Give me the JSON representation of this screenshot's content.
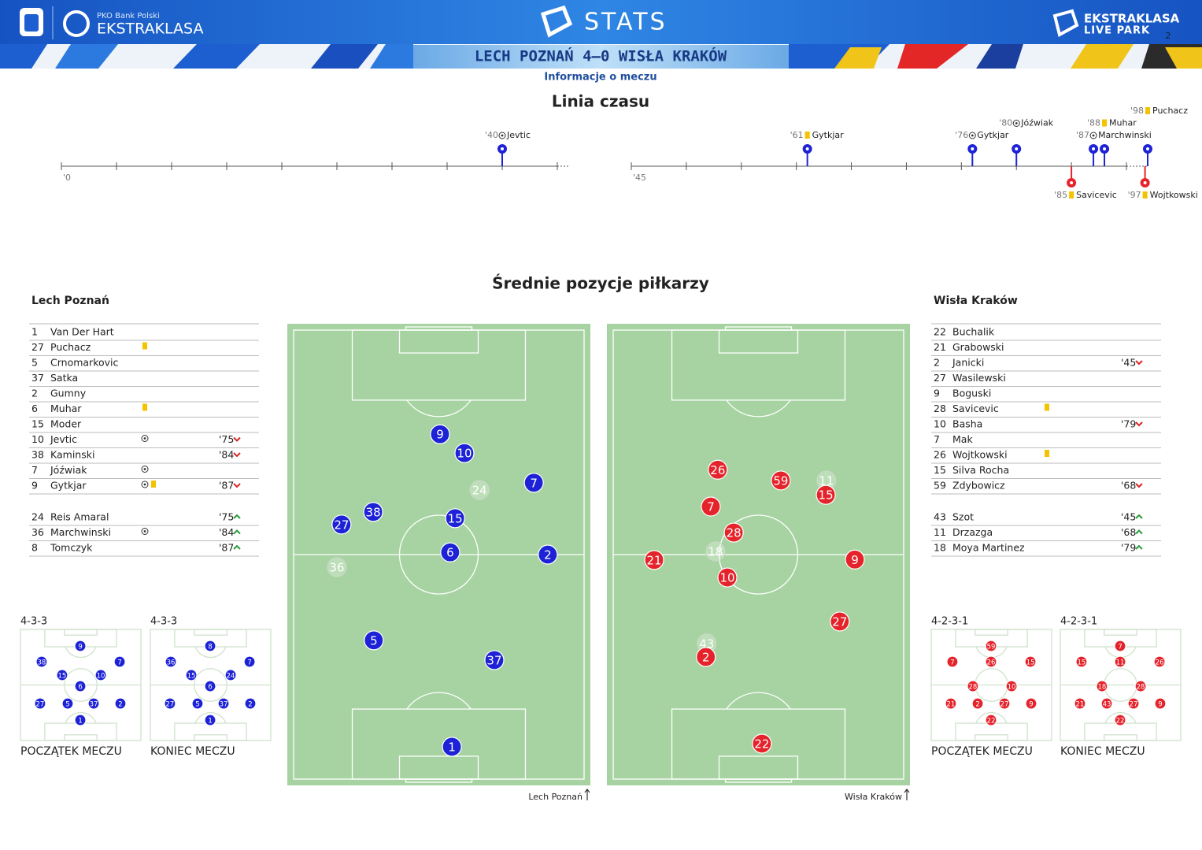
{
  "header": {
    "sponsor": "PKO Bank Polski",
    "league": "EKSTRAKLASA",
    "title": "STATS",
    "brand_top": "EKSTRAKLASA",
    "brand_bottom": "LIVE PARK",
    "page": "2",
    "match": "LECH POZNAŃ 4–0 WISŁA KRAKÓW",
    "subtitle": "Informacje o meczu"
  },
  "team_colors": {
    "home": "#1d22d6",
    "away": "#e5232b"
  },
  "timeline": {
    "title": "Linia czasu",
    "halves": [
      {
        "start_label": "'0",
        "xlim": [
          0,
          45
        ],
        "stoppage_lim": [
          45,
          48
        ],
        "xticks": [
          0,
          5,
          10,
          15,
          20,
          25,
          30,
          35,
          40,
          45
        ]
      },
      {
        "start_label": "'45",
        "xlim": [
          45,
          90
        ],
        "stoppage_lim": [
          90,
          98
        ],
        "xticks": [
          45,
          50,
          55,
          60,
          65,
          70,
          75,
          80,
          85,
          90
        ]
      }
    ],
    "events": [
      {
        "minute": 40,
        "label": "'40",
        "player": "Jevtic",
        "kind": "goal",
        "team": "home",
        "half": 0
      },
      {
        "minute": 61,
        "label": "'61",
        "player": "Gytkjar",
        "kind": "yellow",
        "team": "home",
        "half": 1
      },
      {
        "minute": 76,
        "label": "'76",
        "player": "Gytkjar",
        "kind": "goal",
        "team": "home",
        "half": 1
      },
      {
        "minute": 80,
        "label": "'80",
        "player": "Jóźwiak",
        "kind": "goal",
        "team": "home",
        "half": 1
      },
      {
        "minute": 85,
        "label": "'85",
        "player": "Savicevic",
        "kind": "yellow",
        "team": "away",
        "half": 1
      },
      {
        "minute": 87,
        "label": "'87",
        "player": "Marchwinski",
        "kind": "goal",
        "team": "home",
        "half": 1
      },
      {
        "minute": 88,
        "label": "'88",
        "player": "Muhar",
        "kind": "yellow",
        "team": "home",
        "half": 1
      },
      {
        "minute": 97,
        "label": "'97",
        "player": "Wojtkowski",
        "kind": "yellow",
        "team": "away",
        "half": 1
      },
      {
        "minute": 98,
        "label": "'98",
        "player": "Puchacz",
        "kind": "yellow",
        "team": "home",
        "half": 1
      }
    ]
  },
  "positions_title": "Średnie pozycje piłkarzy",
  "lineups": {
    "home": {
      "team": "Lech Poznań",
      "starters": [
        {
          "number": 1,
          "name": "Van Der Hart"
        },
        {
          "number": 27,
          "name": "Puchacz",
          "icons": [
            "yellow"
          ]
        },
        {
          "number": 5,
          "name": "Crnomarkovic"
        },
        {
          "number": 37,
          "name": "Satka"
        },
        {
          "number": 2,
          "name": "Gumny"
        },
        {
          "number": 6,
          "name": "Muhar",
          "icons": [
            "yellow"
          ]
        },
        {
          "number": 15,
          "name": "Moder"
        },
        {
          "number": 10,
          "name": "Jevtic",
          "icons": [
            "goal"
          ],
          "sub": {
            "label": "'75",
            "dir": "off"
          }
        },
        {
          "number": 38,
          "name": "Kaminski",
          "sub": {
            "label": "'84",
            "dir": "off"
          }
        },
        {
          "number": 7,
          "name": "Jóźwiak",
          "icons": [
            "goal"
          ]
        },
        {
          "number": 9,
          "name": "Gytkjar",
          "icons": [
            "goal",
            "yellow"
          ],
          "sub": {
            "label": "'87",
            "dir": "off"
          }
        }
      ],
      "subs": [
        {
          "number": 24,
          "name": "Reis Amaral",
          "sub": {
            "label": "'75",
            "dir": "on"
          }
        },
        {
          "number": 36,
          "name": "Marchwinski",
          "icons": [
            "goal"
          ],
          "sub": {
            "label": "'84",
            "dir": "on"
          }
        },
        {
          "number": 8,
          "name": "Tomczyk",
          "sub": {
            "label": "'87",
            "dir": "on"
          }
        }
      ]
    },
    "away": {
      "team": "Wisła Kraków",
      "starters": [
        {
          "number": 22,
          "name": "Buchalik"
        },
        {
          "number": 21,
          "name": "Grabowski"
        },
        {
          "number": 2,
          "name": "Janicki",
          "sub": {
            "label": "'45",
            "dir": "off"
          }
        },
        {
          "number": 27,
          "name": "Wasilewski"
        },
        {
          "number": 9,
          "name": "Boguski"
        },
        {
          "number": 28,
          "name": "Savicevic",
          "icons": [
            "yellow"
          ]
        },
        {
          "number": 10,
          "name": "Basha",
          "sub": {
            "label": "'79",
            "dir": "off"
          }
        },
        {
          "number": 7,
          "name": "Mak"
        },
        {
          "number": 26,
          "name": "Wojtkowski",
          "icons": [
            "yellow"
          ]
        },
        {
          "number": 15,
          "name": "Silva Rocha"
        },
        {
          "number": 59,
          "name": "Zdybowicz",
          "sub": {
            "label": "'68",
            "dir": "off"
          }
        }
      ],
      "subs": [
        {
          "number": 43,
          "name": "Szot",
          "sub": {
            "label": "'45",
            "dir": "on"
          }
        },
        {
          "number": 11,
          "name": "Drzazga",
          "sub": {
            "label": "'68",
            "dir": "on"
          }
        },
        {
          "number": 18,
          "name": "Moya Martinez",
          "sub": {
            "label": "'79",
            "dir": "on"
          }
        }
      ]
    }
  },
  "positions": {
    "home": [
      {
        "number": 9,
        "x": 50.4,
        "y": 23.2
      },
      {
        "number": 10,
        "x": 58.8,
        "y": 27.4
      },
      {
        "number": 24,
        "x": 64.0,
        "y": 35.6,
        "faded": true
      },
      {
        "number": 7,
        "x": 82.7,
        "y": 34.0
      },
      {
        "number": 38,
        "x": 27.4,
        "y": 40.5
      },
      {
        "number": 27,
        "x": 16.5,
        "y": 43.3
      },
      {
        "number": 15,
        "x": 55.6,
        "y": 41.9
      },
      {
        "number": 6,
        "x": 53.9,
        "y": 49.5
      },
      {
        "number": 2,
        "x": 87.5,
        "y": 50.0
      },
      {
        "number": 36,
        "x": 14.9,
        "y": 52.8,
        "faded": true
      },
      {
        "number": 5,
        "x": 27.6,
        "y": 69.1
      },
      {
        "number": 37,
        "x": 69.1,
        "y": 73.5
      },
      {
        "number": 1,
        "x": 54.5,
        "y": 92.8
      }
    ],
    "away": [
      {
        "number": 26,
        "x": 36.0,
        "y": 31.1
      },
      {
        "number": 59,
        "x": 57.7,
        "y": 33.5
      },
      {
        "number": 11,
        "x": 73.4,
        "y": 33.5,
        "faded": true
      },
      {
        "number": 15,
        "x": 73.2,
        "y": 36.7
      },
      {
        "number": 7,
        "x": 33.6,
        "y": 39.3
      },
      {
        "number": 28,
        "x": 41.5,
        "y": 45.1
      },
      {
        "number": 18,
        "x": 35.2,
        "y": 49.3,
        "faded": true
      },
      {
        "number": 21,
        "x": 14.1,
        "y": 51.2
      },
      {
        "number": 9,
        "x": 83.2,
        "y": 51.1
      },
      {
        "number": 10,
        "x": 39.3,
        "y": 55.1
      },
      {
        "number": 27,
        "x": 78.0,
        "y": 64.9
      },
      {
        "number": 43,
        "x": 32.2,
        "y": 69.8,
        "faded": true
      },
      {
        "number": 2,
        "x": 31.9,
        "y": 72.8
      },
      {
        "number": 22,
        "x": 51.2,
        "y": 92.1
      }
    ]
  },
  "formations": {
    "home": [
      {
        "label": "4-3-3",
        "caption": "POCZĄTEK MECZU",
        "players": [
          {
            "number": 9,
            "x": 49.7,
            "y": 14.9
          },
          {
            "number": 38,
            "x": 17.6,
            "y": 29.1
          },
          {
            "number": 7,
            "x": 82.4,
            "y": 29.1
          },
          {
            "number": 15,
            "x": 34.6,
            "y": 41.1
          },
          {
            "number": 10,
            "x": 66.7,
            "y": 41.1
          },
          {
            "number": 6,
            "x": 49.7,
            "y": 51.1
          },
          {
            "number": 27,
            "x": 16.3,
            "y": 66.7
          },
          {
            "number": 5,
            "x": 39.2,
            "y": 66.7
          },
          {
            "number": 37,
            "x": 60.8,
            "y": 66.7
          },
          {
            "number": 2,
            "x": 83.0,
            "y": 66.7
          },
          {
            "number": 1,
            "x": 49.7,
            "y": 81.6
          }
        ]
      },
      {
        "label": "4-3-3",
        "caption": "KONIEC MECZU",
        "players": [
          {
            "number": 8,
            "x": 49.7,
            "y": 14.9
          },
          {
            "number": 36,
            "x": 17.0,
            "y": 29.1
          },
          {
            "number": 7,
            "x": 82.4,
            "y": 29.1
          },
          {
            "number": 15,
            "x": 34.0,
            "y": 41.1
          },
          {
            "number": 24,
            "x": 66.7,
            "y": 41.1
          },
          {
            "number": 6,
            "x": 49.7,
            "y": 51.1
          },
          {
            "number": 27,
            "x": 16.3,
            "y": 66.7
          },
          {
            "number": 5,
            "x": 39.2,
            "y": 66.7
          },
          {
            "number": 37,
            "x": 60.8,
            "y": 66.7
          },
          {
            "number": 2,
            "x": 83.0,
            "y": 66.7
          },
          {
            "number": 1,
            "x": 49.7,
            "y": 81.6
          }
        ]
      }
    ],
    "away": [
      {
        "label": "4-2-3-1",
        "caption": "POCZĄTEK MECZU",
        "players": [
          {
            "number": 59,
            "x": 49.7,
            "y": 14.9
          },
          {
            "number": 7,
            "x": 17.6,
            "y": 29.1
          },
          {
            "number": 26,
            "x": 49.7,
            "y": 29.1
          },
          {
            "number": 15,
            "x": 82.4,
            "y": 29.1
          },
          {
            "number": 28,
            "x": 34.6,
            "y": 51.1
          },
          {
            "number": 10,
            "x": 66.7,
            "y": 51.1
          },
          {
            "number": 21,
            "x": 16.3,
            "y": 66.7
          },
          {
            "number": 2,
            "x": 38.6,
            "y": 66.7
          },
          {
            "number": 27,
            "x": 60.8,
            "y": 66.7
          },
          {
            "number": 9,
            "x": 83.0,
            "y": 66.7
          },
          {
            "number": 22,
            "x": 49.7,
            "y": 81.6
          }
        ]
      },
      {
        "label": "4-2-3-1",
        "caption": "KONIEC MECZU",
        "players": [
          {
            "number": 7,
            "x": 49.7,
            "y": 14.9
          },
          {
            "number": 15,
            "x": 17.6,
            "y": 29.1
          },
          {
            "number": 11,
            "x": 49.7,
            "y": 29.1
          },
          {
            "number": 26,
            "x": 82.4,
            "y": 29.1
          },
          {
            "number": 18,
            "x": 34.6,
            "y": 51.1
          },
          {
            "number": 28,
            "x": 66.7,
            "y": 51.1
          },
          {
            "number": 21,
            "x": 16.3,
            "y": 66.7
          },
          {
            "number": 43,
            "x": 38.6,
            "y": 66.7
          },
          {
            "number": 27,
            "x": 60.8,
            "y": 66.7
          },
          {
            "number": 9,
            "x": 83.0,
            "y": 66.7
          },
          {
            "number": 22,
            "x": 49.7,
            "y": 81.6
          }
        ]
      }
    ]
  }
}
